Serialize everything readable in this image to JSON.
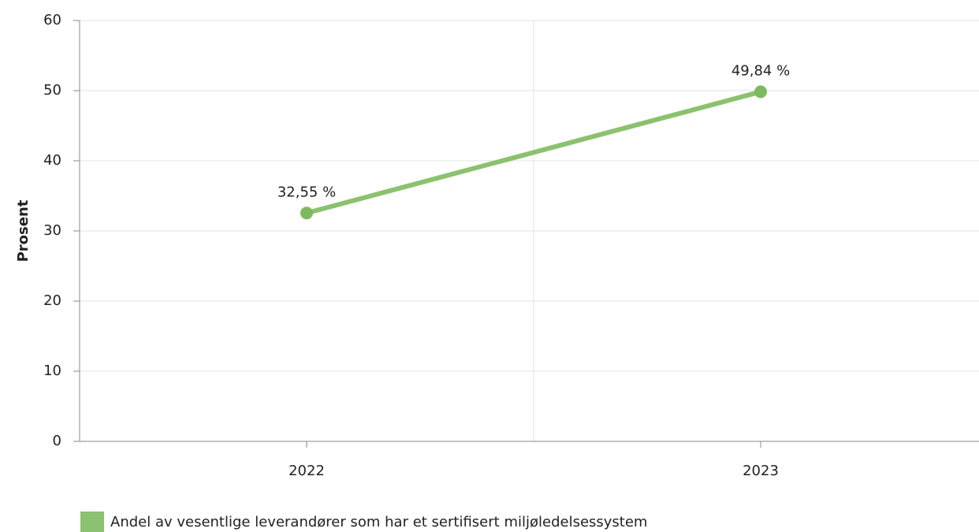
{
  "chart_data": {
    "type": "line",
    "y_label": "Prosent",
    "categories": [
      "2022",
      "2023"
    ],
    "series": [
      {
        "name": "Andel av vesentlige leverandører som har et sertifisert miljøledelsessystem",
        "color": "#8bc16f",
        "values": [
          32.55,
          49.84
        ],
        "value_labels": [
          "32,55 %",
          "49,84 %"
        ]
      }
    ],
    "ylim": [
      0,
      60
    ],
    "yticks": [
      0,
      10,
      20,
      30,
      40,
      50,
      60
    ],
    "grid": true,
    "legend": "bottom"
  }
}
